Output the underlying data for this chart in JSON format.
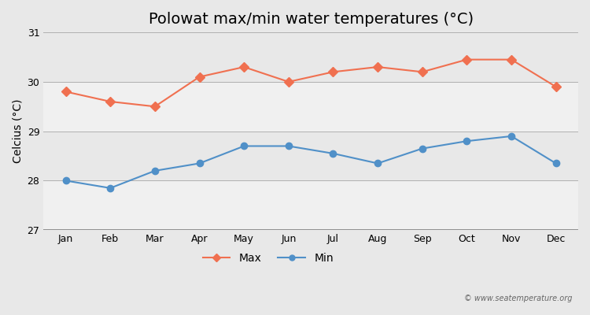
{
  "title": "Polowat max/min water temperatures (°C)",
  "ylabel": "Celcius (°C)",
  "months": [
    "Jan",
    "Feb",
    "Mar",
    "Apr",
    "May",
    "Jun",
    "Jul",
    "Aug",
    "Sep",
    "Oct",
    "Nov",
    "Dec"
  ],
  "max_temps": [
    29.8,
    29.6,
    29.5,
    30.1,
    30.3,
    30.0,
    30.2,
    30.3,
    30.2,
    30.45,
    30.45,
    29.9
  ],
  "min_temps": [
    28.0,
    27.85,
    28.2,
    28.35,
    28.7,
    28.7,
    28.55,
    28.35,
    28.65,
    28.8,
    28.9,
    28.35
  ],
  "max_color": "#f07050",
  "min_color": "#5090c8",
  "bg_color_outer": "#e8e8e8",
  "bg_color_inner": "#f0f0f0",
  "band1_color": "#e8e8e8",
  "band2_color": "#f0f0f0",
  "ylim": [
    27.0,
    31.0
  ],
  "yticks": [
    27,
    28,
    29,
    30,
    31
  ],
  "watermark": "© www.seatemperature.org",
  "title_fontsize": 14,
  "label_fontsize": 10,
  "tick_fontsize": 9,
  "legend_labels": [
    "Max",
    "Min"
  ]
}
